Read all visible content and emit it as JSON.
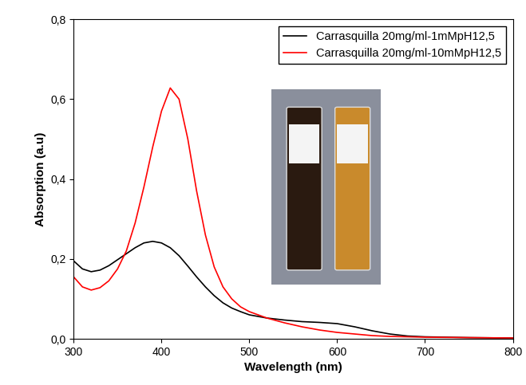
{
  "chart_data": {
    "type": "line",
    "x_label": "Wavelength (nm)",
    "y_label": "Absorption (a.u)",
    "x": [
      300,
      310,
      320,
      330,
      340,
      350,
      360,
      370,
      380,
      390,
      400,
      410,
      420,
      430,
      440,
      450,
      460,
      470,
      480,
      490,
      500,
      520,
      540,
      560,
      580,
      600,
      620,
      640,
      660,
      680,
      700,
      750,
      800
    ],
    "series": [
      {
        "name": "Carrasquilla 20mg/ml-1mMpH12,5",
        "color": "#000000",
        "values": [
          0.195,
          0.175,
          0.168,
          0.172,
          0.183,
          0.198,
          0.213,
          0.228,
          0.24,
          0.244,
          0.24,
          0.228,
          0.208,
          0.182,
          0.155,
          0.13,
          0.108,
          0.09,
          0.077,
          0.068,
          0.06,
          0.052,
          0.047,
          0.043,
          0.041,
          0.038,
          0.03,
          0.02,
          0.012,
          0.007,
          0.005,
          0.003,
          0.002
        ]
      },
      {
        "name": "Carrasquilla 20mg/ml-10mMpH12,5",
        "color": "#ff0000",
        "values": [
          0.155,
          0.13,
          0.122,
          0.128,
          0.145,
          0.175,
          0.22,
          0.29,
          0.38,
          0.48,
          0.57,
          0.628,
          0.6,
          0.5,
          0.37,
          0.26,
          0.18,
          0.13,
          0.1,
          0.08,
          0.068,
          0.052,
          0.04,
          0.03,
          0.022,
          0.016,
          0.012,
          0.008,
          0.006,
          0.005,
          0.004,
          0.003,
          0.002
        ]
      }
    ],
    "xlim": [
      300,
      800
    ],
    "xticks": [
      300,
      400,
      500,
      600,
      700,
      800
    ],
    "ylim": [
      0,
      0.8
    ],
    "yticks": [
      {
        "value": 0,
        "label": "0,0"
      },
      {
        "value": 0.2,
        "label": "0,2"
      },
      {
        "value": 0.4,
        "label": "0,4"
      },
      {
        "value": 0.6,
        "label": "0,6"
      },
      {
        "value": 0.8,
        "label": "0,8"
      }
    ],
    "legend": "upper right"
  }
}
